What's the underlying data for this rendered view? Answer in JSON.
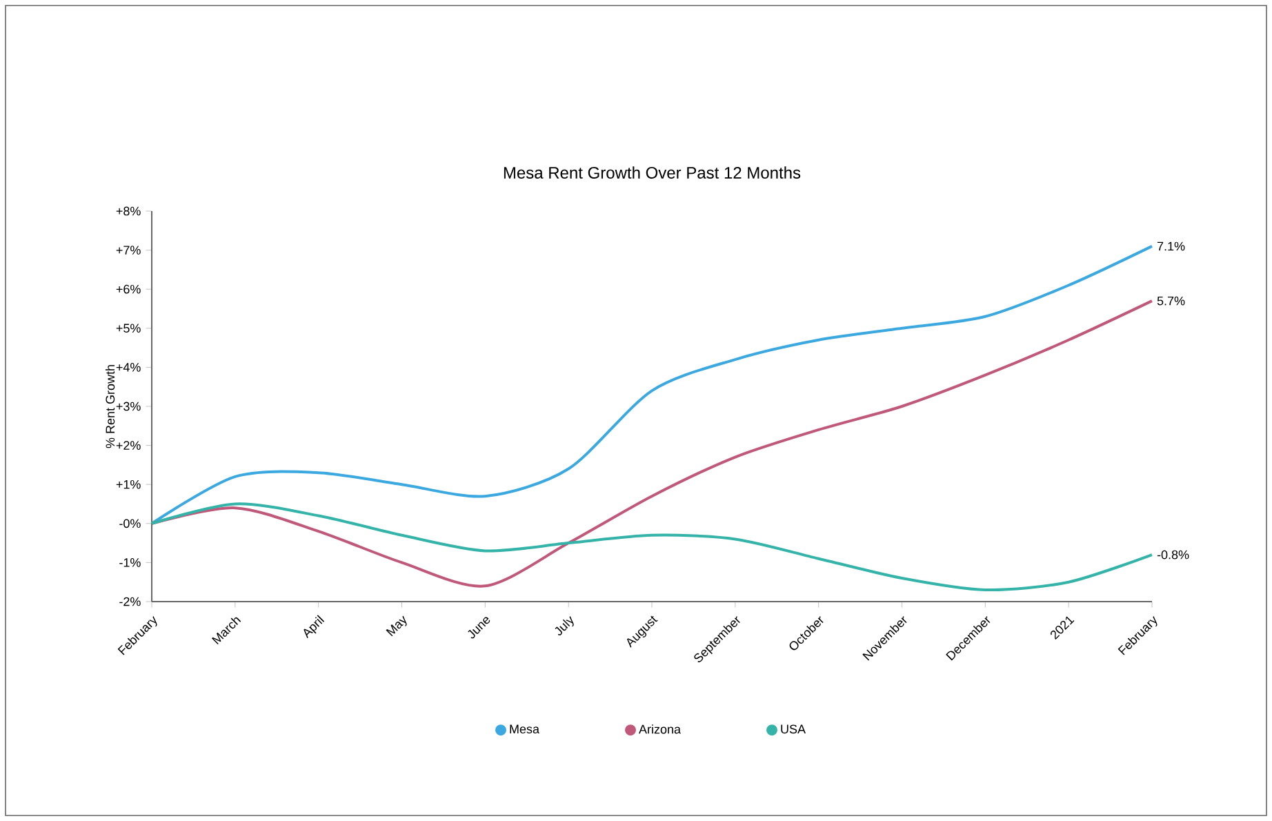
{
  "chart_data": {
    "type": "line",
    "title": "Mesa Rent Growth Over Past 12 Months",
    "ylabel": "% Rent Growth",
    "categories": [
      "February",
      "March",
      "April",
      "May",
      "June",
      "July",
      "August",
      "September",
      "October",
      "November",
      "December",
      "2021",
      "February"
    ],
    "ylim": [
      -2,
      8
    ],
    "yticks": [
      {
        "value": -2,
        "label": "-2%"
      },
      {
        "value": -1,
        "label": "-1%"
      },
      {
        "value": 0,
        "label": "-0%"
      },
      {
        "value": 1,
        "label": "+1%"
      },
      {
        "value": 2,
        "label": "+2%"
      },
      {
        "value": 3,
        "label": "+3%"
      },
      {
        "value": 4,
        "label": "+4%"
      },
      {
        "value": 5,
        "label": "+5%"
      },
      {
        "value": 6,
        "label": "+6%"
      },
      {
        "value": 7,
        "label": "+7%"
      },
      {
        "value": 8,
        "label": "+8%"
      }
    ],
    "grid": false,
    "legend": "bottom",
    "marker": "none",
    "line_style": "solid",
    "series": [
      {
        "name": "Mesa",
        "color": "#3ba8e0",
        "values": [
          0,
          1.2,
          1.3,
          1.0,
          0.7,
          1.4,
          3.4,
          4.2,
          4.7,
          5.0,
          5.3,
          6.1,
          7.1
        ],
        "value_labels": [
          null,
          null,
          null,
          null,
          null,
          null,
          null,
          null,
          null,
          null,
          null,
          null,
          "7.1%"
        ]
      },
      {
        "name": "Arizona",
        "color": "#c0587a",
        "values": [
          0,
          0.4,
          -0.2,
          -1.0,
          -1.6,
          -0.5,
          0.7,
          1.7,
          2.4,
          3.0,
          3.8,
          4.7,
          5.7
        ],
        "value_labels": [
          null,
          null,
          null,
          null,
          null,
          null,
          null,
          null,
          null,
          null,
          null,
          null,
          "5.7%"
        ]
      },
      {
        "name": "USA",
        "color": "#34b3a8",
        "values": [
          0,
          0.5,
          0.2,
          -0.3,
          -0.7,
          -0.5,
          -0.3,
          -0.4,
          -0.9,
          -1.4,
          -1.7,
          -1.5,
          -0.8
        ],
        "value_labels": [
          null,
          null,
          null,
          null,
          null,
          null,
          null,
          null,
          null,
          null,
          null,
          null,
          "-0.8%"
        ]
      }
    ]
  }
}
